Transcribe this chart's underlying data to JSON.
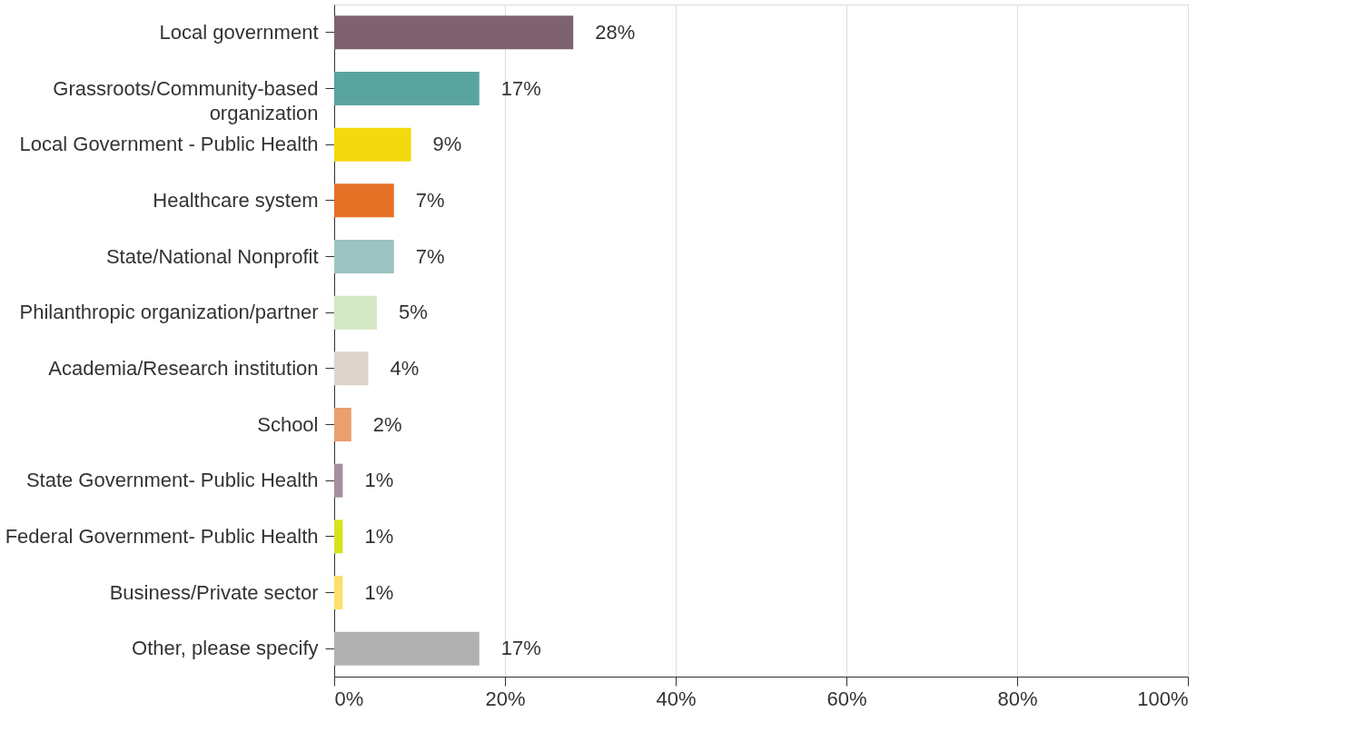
{
  "chart_data": {
    "type": "bar",
    "orientation": "horizontal",
    "categories": [
      "Local government",
      "Grassroots/Community-based organization",
      "Local Government - Public Health",
      "Healthcare system",
      "State/National Nonprofit",
      "Philanthropic organization/partner",
      "Academia/Research institution",
      "School",
      "State Government- Public Health",
      "Federal Government- Public Health",
      "Business/Private sector",
      "Other, please specify"
    ],
    "values": [
      28,
      17,
      9,
      7,
      7,
      5,
      4,
      2,
      1,
      1,
      1,
      17
    ],
    "colors": [
      "#7f6270",
      "#5aa49f",
      "#f4d90f",
      "#e57127",
      "#9bc4c2",
      "#d3e7c5",
      "#ddd4cb",
      "#eb9e6e",
      "#a68e9c",
      "#d8e31e",
      "#fce06e",
      "#b1b1b2"
    ],
    "value_labels": [
      "28%",
      "17%",
      "9%",
      "7%",
      "7%",
      "5%",
      "4%",
      "2%",
      "1%",
      "1%",
      "1%",
      "17%"
    ],
    "xlim": [
      0,
      100
    ],
    "xticks": [
      {
        "value": 0,
        "label": "0%"
      },
      {
        "value": 20,
        "label": "20%"
      },
      {
        "value": 40,
        "label": "40%"
      },
      {
        "value": 60,
        "label": "60%"
      },
      {
        "value": 80,
        "label": "80%"
      },
      {
        "value": 100,
        "label": "100%"
      }
    ],
    "grid": "x",
    "legend": false
  }
}
